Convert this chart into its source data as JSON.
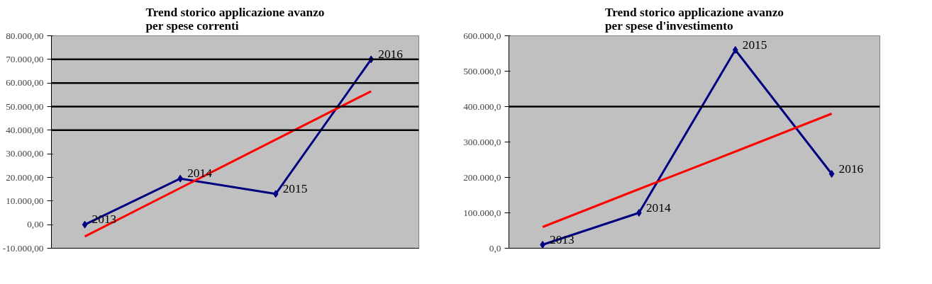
{
  "chart_data": [
    {
      "type": "line",
      "title": "Trend storico applicazione avanzo\nper spese correnti",
      "categories": [
        null,
        null,
        null,
        null
      ],
      "series": [
        {
          "color": "#000080",
          "values": [
            0,
            19500,
            13000,
            70000
          ],
          "marker": "diamond"
        },
        {
          "color": "#ff0000",
          "values": [
            -5000,
            15500,
            36000,
            56500
          ],
          "marker": "none"
        }
      ],
      "annotations": [
        "2013",
        "2014",
        "2015",
        "2016"
      ],
      "ylim": [
        -10000,
        80000
      ],
      "yticks": [
        {
          "value": -10000,
          "label": "-10.000,00"
        },
        {
          "value": 0,
          "label": "0,00"
        },
        {
          "value": 10000,
          "label": "10.000,00"
        },
        {
          "value": 20000,
          "label": "20.000,00"
        },
        {
          "value": 30000,
          "label": "30.000,00"
        },
        {
          "value": 40000,
          "label": "40.000,00"
        },
        {
          "value": 50000,
          "label": "50.000,00"
        },
        {
          "value": 60000,
          "label": "60.000,00"
        },
        {
          "value": 70000,
          "label": "70.000,00"
        },
        {
          "value": 80000,
          "label": "80.000,00"
        }
      ],
      "ref_lines": [
        {
          "axis": "y",
          "value": 40000,
          "color": "#000000"
        },
        {
          "axis": "y",
          "value": 50000,
          "color": "#000000"
        },
        {
          "axis": "y",
          "value": 60000,
          "color": "#000000"
        },
        {
          "axis": "y",
          "value": 70000,
          "color": "#000000"
        }
      ],
      "tick_labels": "y",
      "grid": false
    },
    {
      "type": "line",
      "title": "Trend storico applicazione avanzo\nper spese d'investimento",
      "categories": [
        null,
        null,
        null,
        null
      ],
      "series": [
        {
          "color": "#000080",
          "values": [
            10000,
            100000,
            560000,
            210000
          ],
          "marker": "diamond"
        },
        {
          "color": "#ff0000",
          "values": [
            60000,
            167000,
            273000,
            380000
          ],
          "marker": "none"
        }
      ],
      "annotations": [
        "2013",
        "2014",
        "2015",
        "2016"
      ],
      "ylim": [
        0,
        600000
      ],
      "yticks": [
        {
          "value": 0,
          "label": "0,0"
        },
        {
          "value": 100000,
          "label": "100.000,0"
        },
        {
          "value": 200000,
          "label": "200.000,0"
        },
        {
          "value": 300000,
          "label": "300.000,0"
        },
        {
          "value": 400000,
          "label": "400.000,0"
        },
        {
          "value": 500000,
          "label": "500.000,0"
        },
        {
          "value": 600000,
          "label": "600.000,0"
        }
      ],
      "ref_lines": [
        {
          "axis": "y",
          "value": 400000,
          "color": "#000000"
        }
      ],
      "tick_labels": "y",
      "grid": false
    }
  ]
}
